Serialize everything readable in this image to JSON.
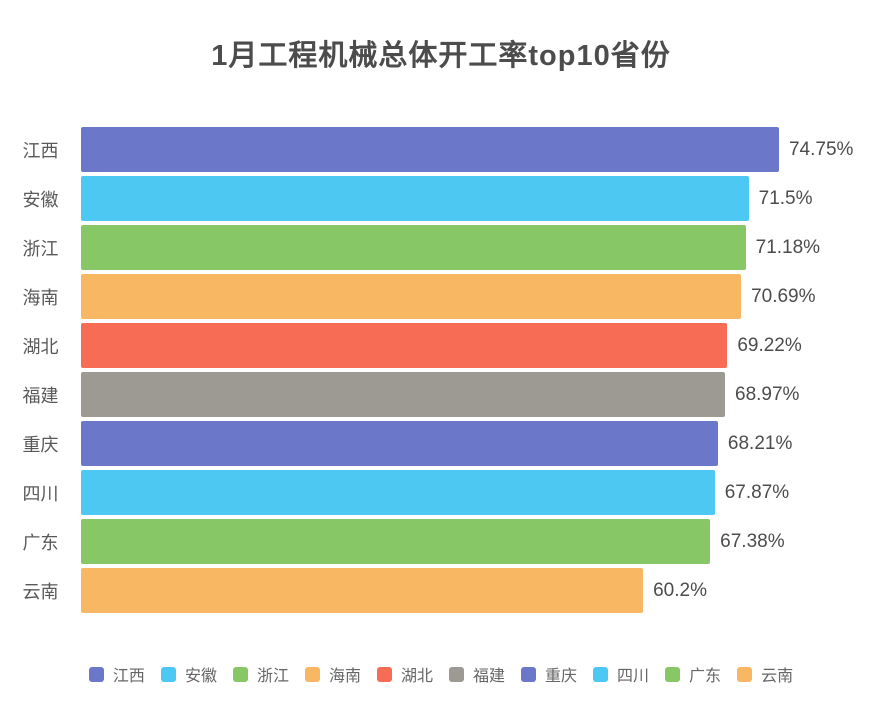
{
  "title": "1月工程机械总体开工率top10省份",
  "chart_data": {
    "type": "bar",
    "orientation": "horizontal",
    "title": "1月工程机械总体开工率top10省份",
    "categories": [
      "江西",
      "安徽",
      "浙江",
      "海南",
      "湖北",
      "福建",
      "重庆",
      "四川",
      "广东",
      "云南"
    ],
    "values": [
      74.75,
      71.5,
      71.18,
      70.69,
      69.22,
      68.97,
      68.21,
      67.87,
      67.38,
      60.2
    ],
    "value_labels": [
      "74.75%",
      "71.5%",
      "71.18%",
      "70.69%",
      "69.22%",
      "68.97%",
      "68.21%",
      "67.87%",
      "67.38%",
      "60.2%"
    ],
    "bar_colors": [
      "#6b77c8",
      "#4cc8f2",
      "#88c766",
      "#f8b863",
      "#f66c55",
      "#9d9a94",
      "#6b77c8",
      "#4cc8f2",
      "#88c766",
      "#f8b863"
    ],
    "xlim": [
      0,
      80
    ],
    "grid": false,
    "legend_position": "bottom",
    "legend": [
      {
        "label": "江西",
        "color": "#6b77c8"
      },
      {
        "label": "安徽",
        "color": "#4cc8f2"
      },
      {
        "label": "浙江",
        "color": "#88c766"
      },
      {
        "label": "海南",
        "color": "#f8b863"
      },
      {
        "label": "湖北",
        "color": "#f66c55"
      },
      {
        "label": "福建",
        "color": "#9d9a94"
      },
      {
        "label": "重庆",
        "color": "#6b77c8"
      },
      {
        "label": "四川",
        "color": "#4cc8f2"
      },
      {
        "label": "广东",
        "color": "#88c766"
      },
      {
        "label": "云南",
        "color": "#f8b863"
      }
    ],
    "text_colors": {
      "title": "#4c4c4c",
      "category": "#595959",
      "value": "#4c4c4c",
      "legend": "#666666"
    }
  }
}
